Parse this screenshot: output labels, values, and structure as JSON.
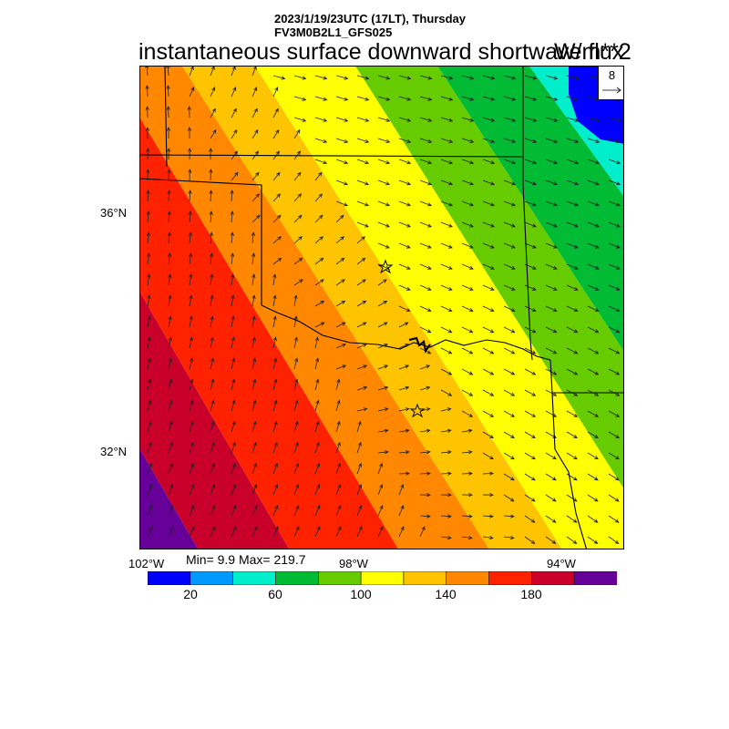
{
  "header": {
    "line1": "2023/1/19/23UTC (17LT), Thursday",
    "line2": "FV3M0B2L1_GFS025",
    "title": "instantaneous surface downward shortwave flux",
    "units": "W/m**2"
  },
  "axes": {
    "lat_labels": [
      "36°N",
      "32°N"
    ],
    "lon_labels": [
      "102°W",
      "98°W",
      "94°W"
    ]
  },
  "reference_vector": {
    "value": "8"
  },
  "stats": {
    "text": "Min= 9.9 Max= 219.7"
  },
  "colorbar": {
    "colors": [
      "#0000ff",
      "#0099ff",
      "#00eecc",
      "#00bb33",
      "#66cc00",
      "#ffff00",
      "#ffc400",
      "#ff8800",
      "#ff2200",
      "#c8002a",
      "#660099"
    ],
    "tick_labels": [
      "20",
      "60",
      "100",
      "140",
      "180"
    ]
  },
  "map": {
    "markers": [
      "star-marker-north",
      "star-marker-south"
    ]
  }
}
